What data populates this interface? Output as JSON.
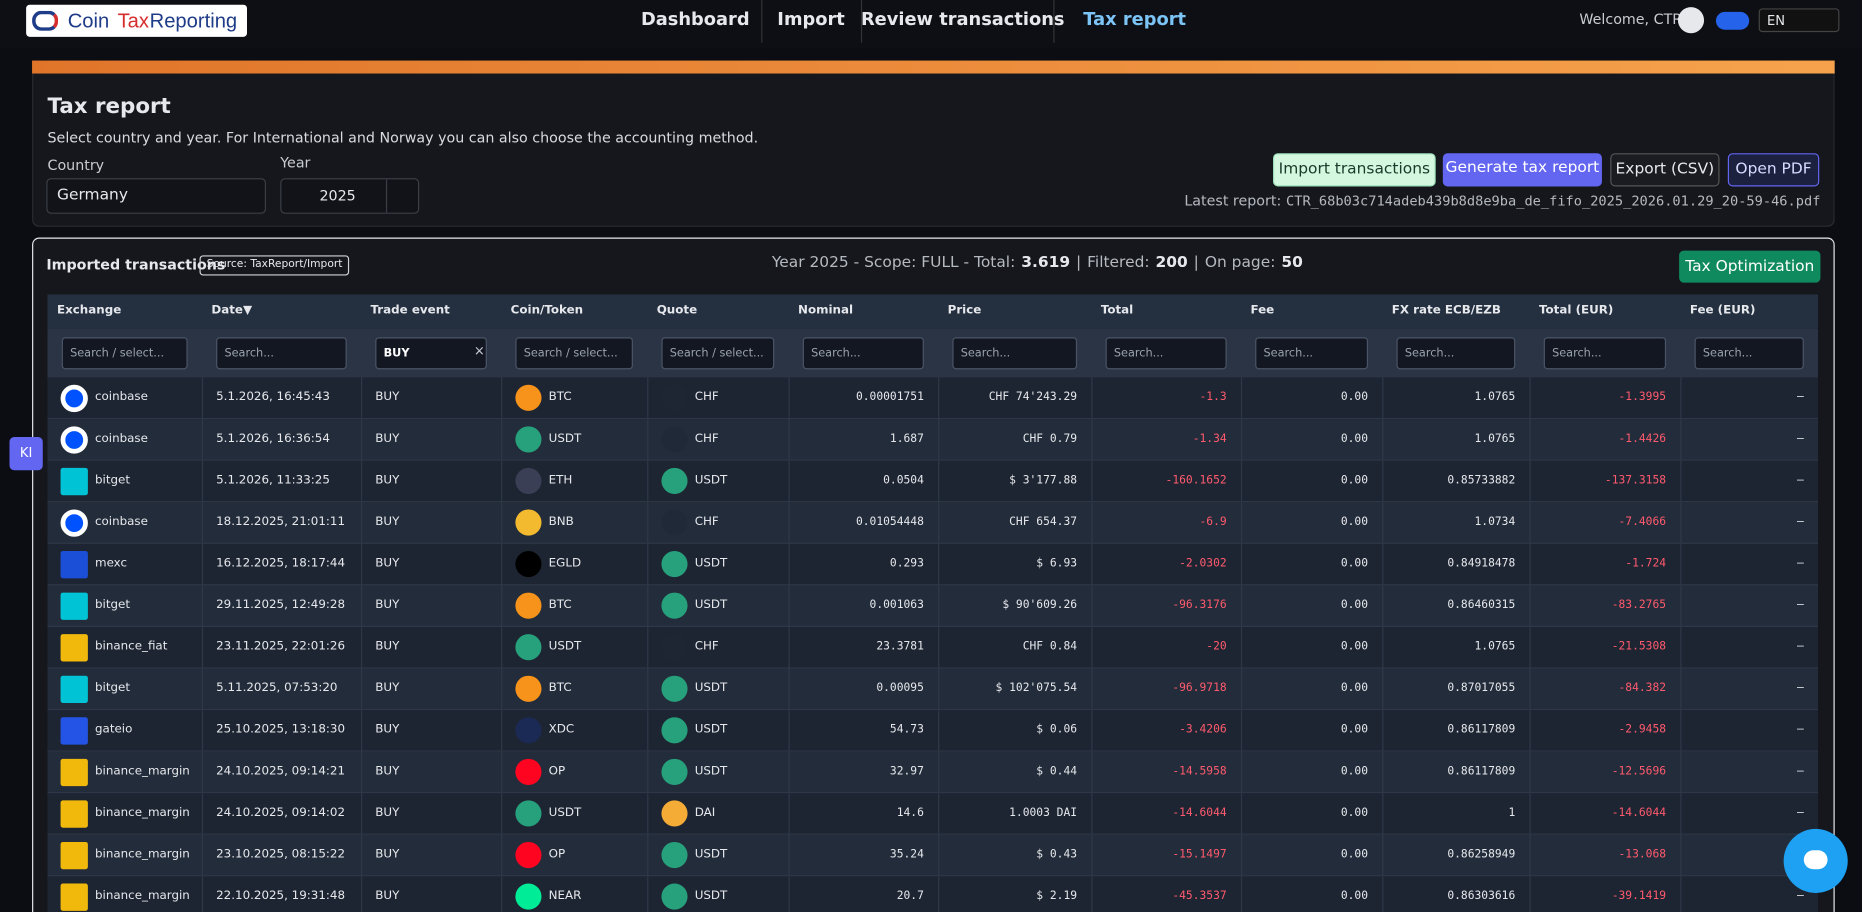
{
  "header": {
    "logo": [
      "Coin",
      "Tax",
      "Reporting"
    ],
    "nav": [
      "Dashboard",
      "Import",
      "Review transactions",
      "Tax report"
    ],
    "welcome": "Welcome, CTR",
    "language": "EN"
  },
  "panel": {
    "title": "Tax report",
    "description": "Select country and year. For International and Norway you can also choose the accounting method.",
    "country_label": "Country",
    "country": "Germany",
    "year_label": "Year",
    "year": "2025",
    "buttons": [
      "Import transactions",
      "Generate tax report",
      "Export (CSV)",
      "Open PDF"
    ],
    "latest_label": "Latest report:",
    "latest_file": "CTR_68b03c714adeb439b8d8e9ba_de_fifo_2025_2026.01.29_20-59-46.pdf"
  },
  "transactions": {
    "title": "Imported transactions",
    "source": "Source: TaxReport/Import",
    "summary": [
      "Year 2025 - Scope: FULL - Total:",
      "3.619",
      "|",
      "Filtered:",
      "200",
      "|",
      "On page:",
      "50"
    ],
    "button": "Tax Optimization",
    "columns": [
      "Exchange",
      "Date▼",
      "Trade event",
      "Coin/Token",
      "Quote",
      "Nominal",
      "Price",
      "Total",
      "Fee",
      "FX rate ECB/EZB",
      "Total (EUR)",
      "Fee (EUR)"
    ],
    "filters": [
      "Search / select...",
      "Search...",
      "BUY",
      "Search / select...",
      "Search / select...",
      "Search...",
      "Search...",
      "Search...",
      "Search...",
      "Search...",
      "Search...",
      "Search..."
    ],
    "filter_clear": "×",
    "rows": [
      [
        "coinbase",
        "5.1.2026, 16:45:43",
        "BUY",
        "BTC",
        "CHF",
        "0.00001751",
        "CHF 74'243.29",
        "-1.3",
        "0.00",
        "1.0765",
        "-1.3995",
        "–"
      ],
      [
        "coinbase",
        "5.1.2026, 16:36:54",
        "BUY",
        "USDT",
        "CHF",
        "1.687",
        "CHF 0.79",
        "-1.34",
        "0.00",
        "1.0765",
        "-1.4426",
        "–"
      ],
      [
        "bitget",
        "5.1.2026, 11:33:25",
        "BUY",
        "ETH",
        "USDT",
        "0.0504",
        "$ 3'177.88",
        "-160.1652",
        "0.00",
        "0.85733882",
        "-137.3158",
        "–"
      ],
      [
        "coinbase",
        "18.12.2025, 21:01:11",
        "BUY",
        "BNB",
        "CHF",
        "0.01054448",
        "CHF 654.37",
        "-6.9",
        "0.00",
        "1.0734",
        "-7.4066",
        "–"
      ],
      [
        "mexc",
        "16.12.2025, 18:17:44",
        "BUY",
        "EGLD",
        "USDT",
        "0.293",
        "$ 6.93",
        "-2.0302",
        "0.00",
        "0.84918478",
        "-1.724",
        "–"
      ],
      [
        "bitget",
        "29.11.2025, 12:49:28",
        "BUY",
        "BTC",
        "USDT",
        "0.001063",
        "$ 90'609.26",
        "-96.3176",
        "0.00",
        "0.86460315",
        "-83.2765",
        "–"
      ],
      [
        "binance_fiat",
        "23.11.2025, 22:01:26",
        "BUY",
        "USDT",
        "CHF",
        "23.3781",
        "CHF 0.84",
        "-20",
        "0.00",
        "1.0765",
        "-21.5308",
        "–"
      ],
      [
        "bitget",
        "5.11.2025, 07:53:20",
        "BUY",
        "BTC",
        "USDT",
        "0.00095",
        "$ 102'075.54",
        "-96.9718",
        "0.00",
        "0.87017055",
        "-84.382",
        "–"
      ],
      [
        "gateio",
        "25.10.2025, 13:18:30",
        "BUY",
        "XDC",
        "USDT",
        "54.73",
        "$ 0.06",
        "-3.4206",
        "0.00",
        "0.86117809",
        "-2.9458",
        "–"
      ],
      [
        "binance_margin",
        "24.10.2025, 09:14:21",
        "BUY",
        "OP",
        "USDT",
        "32.97",
        "$ 0.44",
        "-14.5958",
        "0.00",
        "0.86117809",
        "-12.5696",
        "–"
      ],
      [
        "binance_margin",
        "24.10.2025, 09:14:02",
        "BUY",
        "USDT",
        "DAI",
        "14.6",
        "1.0003 DAI",
        "-14.6044",
        "0.00",
        "1",
        "-14.6044",
        "–"
      ],
      [
        "binance_margin",
        "23.10.2025, 08:15:22",
        "BUY",
        "OP",
        "USDT",
        "35.24",
        "$ 0.43",
        "-15.1497",
        "0.00",
        "0.86258949",
        "-13.068",
        "–"
      ],
      [
        "binance_margin",
        "22.10.2025, 19:31:48",
        "BUY",
        "NEAR",
        "USDT",
        "20.7",
        "$ 2.19",
        "-45.3537",
        "0.00",
        "0.86303616",
        "-39.1419",
        "–"
      ]
    ]
  },
  "side_badge": "KI"
}
